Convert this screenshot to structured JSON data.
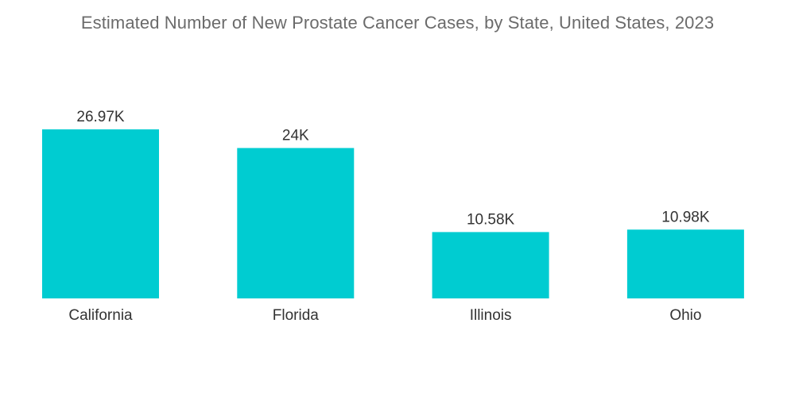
{
  "chart_data": {
    "type": "bar",
    "title": "Estimated Number of New Prostate Cancer Cases, by State, United States, 2023",
    "categories": [
      "California",
      "Florida",
      "Illinois",
      "Ohio"
    ],
    "values": [
      26970,
      24000,
      10580,
      10980
    ],
    "value_labels": [
      "26.97K",
      "24K",
      "10.58K",
      "10.98K"
    ],
    "xlabel": "",
    "ylabel": "",
    "ylim": [
      0,
      26970
    ],
    "grid": false,
    "legend": "none",
    "bar_color": "#00ccd1"
  }
}
